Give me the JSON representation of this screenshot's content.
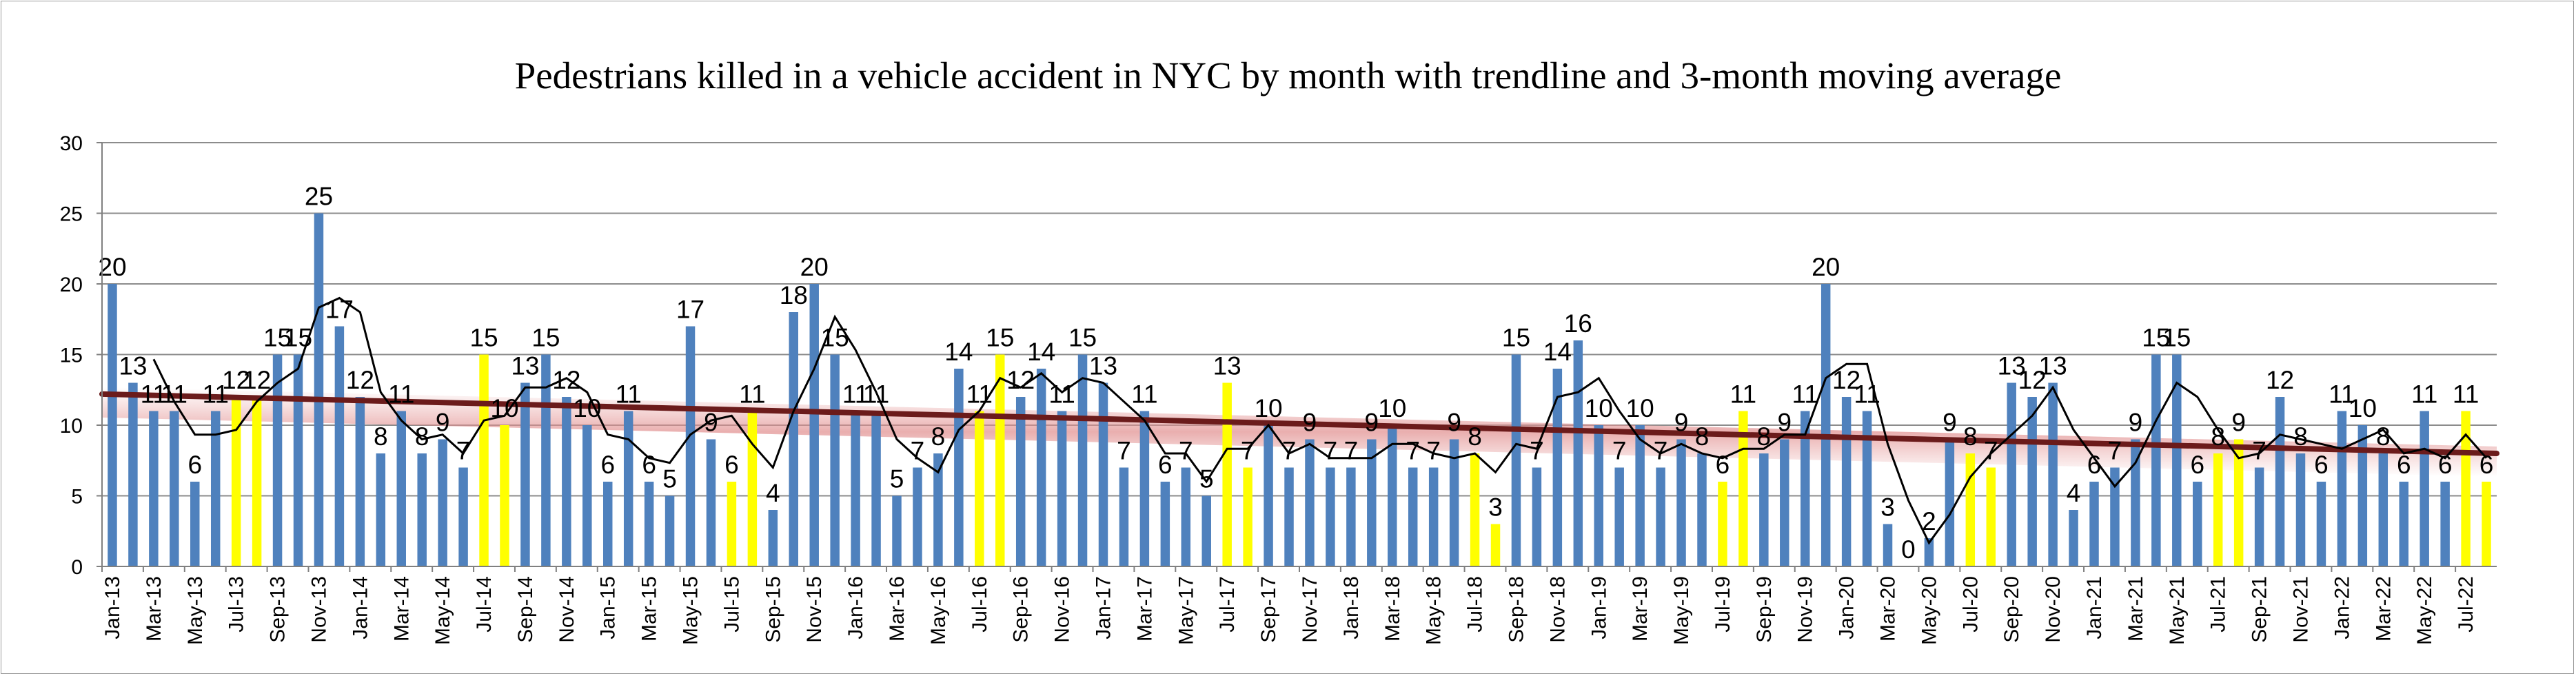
{
  "chart_data": {
    "type": "bar",
    "title": "Pedestrians killed in a vehicle accident  in NYC  by month with trendline and 3-month moving average",
    "xlabel": "",
    "ylabel": "",
    "ylim": [
      0,
      30
    ],
    "yticks": [
      0,
      5,
      10,
      15,
      20,
      25,
      30
    ],
    "grid": true,
    "legend": "none",
    "categories": [
      "Jan-13",
      "Feb-13",
      "Mar-13",
      "Apr-13",
      "May-13",
      "Jun-13",
      "Jul-13",
      "Aug-13",
      "Sep-13",
      "Oct-13",
      "Nov-13",
      "Dec-13",
      "Jan-14",
      "Feb-14",
      "Mar-14",
      "Apr-14",
      "May-14",
      "Jun-14",
      "Jul-14",
      "Aug-14",
      "Sep-14",
      "Oct-14",
      "Nov-14",
      "Dec-14",
      "Jan-15",
      "Feb-15",
      "Mar-15",
      "Apr-15",
      "May-15",
      "Jun-15",
      "Jul-15",
      "Aug-15",
      "Sep-15",
      "Oct-15",
      "Nov-15",
      "Dec-15",
      "Jan-16",
      "Feb-16",
      "Mar-16",
      "Apr-16",
      "May-16",
      "Jun-16",
      "Jul-16",
      "Aug-16",
      "Sep-16",
      "Oct-16",
      "Nov-16",
      "Dec-16",
      "Jan-17",
      "Feb-17",
      "Mar-17",
      "Apr-17",
      "May-17",
      "Jun-17",
      "Jul-17",
      "Aug-17",
      "Sep-17",
      "Oct-17",
      "Nov-17",
      "Dec-17",
      "Jan-18",
      "Feb-18",
      "Mar-18",
      "Apr-18",
      "May-18",
      "Jun-18",
      "Jul-18",
      "Aug-18",
      "Sep-18",
      "Oct-18",
      "Nov-18",
      "Dec-18",
      "Jan-19",
      "Feb-19",
      "Mar-19",
      "Apr-19",
      "May-19",
      "Jun-19",
      "Jul-19",
      "Aug-19",
      "Sep-19",
      "Oct-19",
      "Nov-19",
      "Dec-19",
      "Jan-20",
      "Feb-20",
      "Mar-20",
      "Apr-20",
      "May-20",
      "Jun-20",
      "Jul-20",
      "Aug-20",
      "Sep-20",
      "Oct-20",
      "Nov-20",
      "Dec-20",
      "Jan-21",
      "Feb-21",
      "Mar-21",
      "Apr-21",
      "May-21",
      "Jun-21",
      "Jul-21",
      "Aug-21",
      "Sep-21",
      "Oct-21",
      "Nov-21",
      "Dec-21",
      "Jan-22",
      "Feb-22",
      "Mar-22",
      "Apr-22",
      "May-22",
      "Jun-22",
      "Jul-22",
      "Aug-22"
    ],
    "tick_labels": [
      "Jan-13",
      "Mar-13",
      "May-13",
      "Jul-13",
      "Sep-13",
      "Nov-13",
      "Jan-14",
      "Mar-14",
      "May-14",
      "Jul-14",
      "Sep-14",
      "Nov-14",
      "Jan-15",
      "Mar-15",
      "May-15",
      "Jul-15",
      "Sep-15",
      "Nov-15",
      "Jan-16",
      "Mar-16",
      "May-16",
      "Jul-16",
      "Sep-16",
      "Nov-16",
      "Jan-17",
      "Mar-17",
      "May-17",
      "Jul-17",
      "Sep-17",
      "Nov-17",
      "Jan-18",
      "Mar-18",
      "May-18",
      "Jul-18",
      "Sep-18",
      "Nov-18",
      "Jan-19",
      "Mar-19",
      "May-19",
      "Jul-19",
      "Sep-19",
      "Nov-19",
      "Jan-20",
      "Mar-20",
      "May-20",
      "Jul-20",
      "Sep-20",
      "Nov-20",
      "Jan-21",
      "Mar-21",
      "May-21",
      "Jul-21",
      "Sep-21",
      "Nov-21",
      "Jan-22",
      "Mar-22",
      "May-22",
      "Jul-22"
    ],
    "series": [
      {
        "values": [
          20,
          13,
          11,
          11,
          6,
          11,
          12,
          12,
          15,
          15,
          25,
          17,
          12,
          8,
          11,
          8,
          9,
          7,
          15,
          10,
          13,
          15,
          12,
          10,
          6,
          11,
          6,
          5,
          17,
          9,
          6,
          11,
          4,
          18,
          20,
          15,
          11,
          11,
          5,
          7,
          8,
          14,
          11,
          15,
          12,
          14,
          11,
          15,
          13,
          7,
          11,
          6,
          7,
          5,
          13,
          7,
          10,
          7,
          9,
          7,
          7,
          9,
          10,
          7,
          7,
          9,
          8,
          3,
          15,
          7,
          14,
          16,
          10,
          7,
          10,
          7,
          9,
          8,
          6,
          11,
          8,
          9,
          11,
          20,
          12,
          11,
          3,
          0,
          2,
          9,
          8,
          7,
          13,
          12,
          13,
          4,
          6,
          7,
          9,
          15,
          15,
          6,
          8,
          9,
          7,
          12,
          8,
          6,
          11,
          10,
          8,
          6,
          11,
          6,
          11,
          6
        ],
        "highlight_months": [
          "Jul",
          "Aug"
        ],
        "colors": {
          "default": "#4f81bd",
          "highlight": "#ffff00"
        }
      }
    ],
    "data_labels": [
      20,
      13,
      11,
      11,
      6,
      11,
      12,
      12,
      15,
      15,
      25,
      17,
      12,
      8,
      11,
      8,
      9,
      7,
      15,
      10,
      13,
      15,
      12,
      10,
      6,
      11,
      6,
      5,
      17,
      9,
      6,
      11,
      4,
      18,
      20,
      15,
      11,
      11,
      5,
      7,
      8,
      14,
      11,
      15,
      12,
      14,
      11,
      15,
      13,
      7,
      11,
      6,
      7,
      5,
      13,
      7,
      10,
      7,
      9,
      7,
      7,
      9,
      10,
      7,
      7,
      9,
      8,
      3,
      15,
      7,
      14,
      16,
      10,
      7,
      10,
      7,
      9,
      8,
      6,
      11,
      8,
      9,
      11,
      20,
      12,
      11,
      3,
      0,
      2,
      9,
      8,
      7,
      13,
      12,
      13,
      4,
      6,
      7,
      9,
      15,
      15,
      6,
      8,
      9,
      7,
      12,
      8,
      6,
      11,
      10,
      8,
      6,
      11,
      6,
      11,
      6
    ],
    "trendline": {
      "type": "linear",
      "start": 12.2,
      "end": 8.0,
      "color": "#6b1b1b"
    },
    "moving_average": {
      "period": 3,
      "color": "#000000"
    }
  }
}
